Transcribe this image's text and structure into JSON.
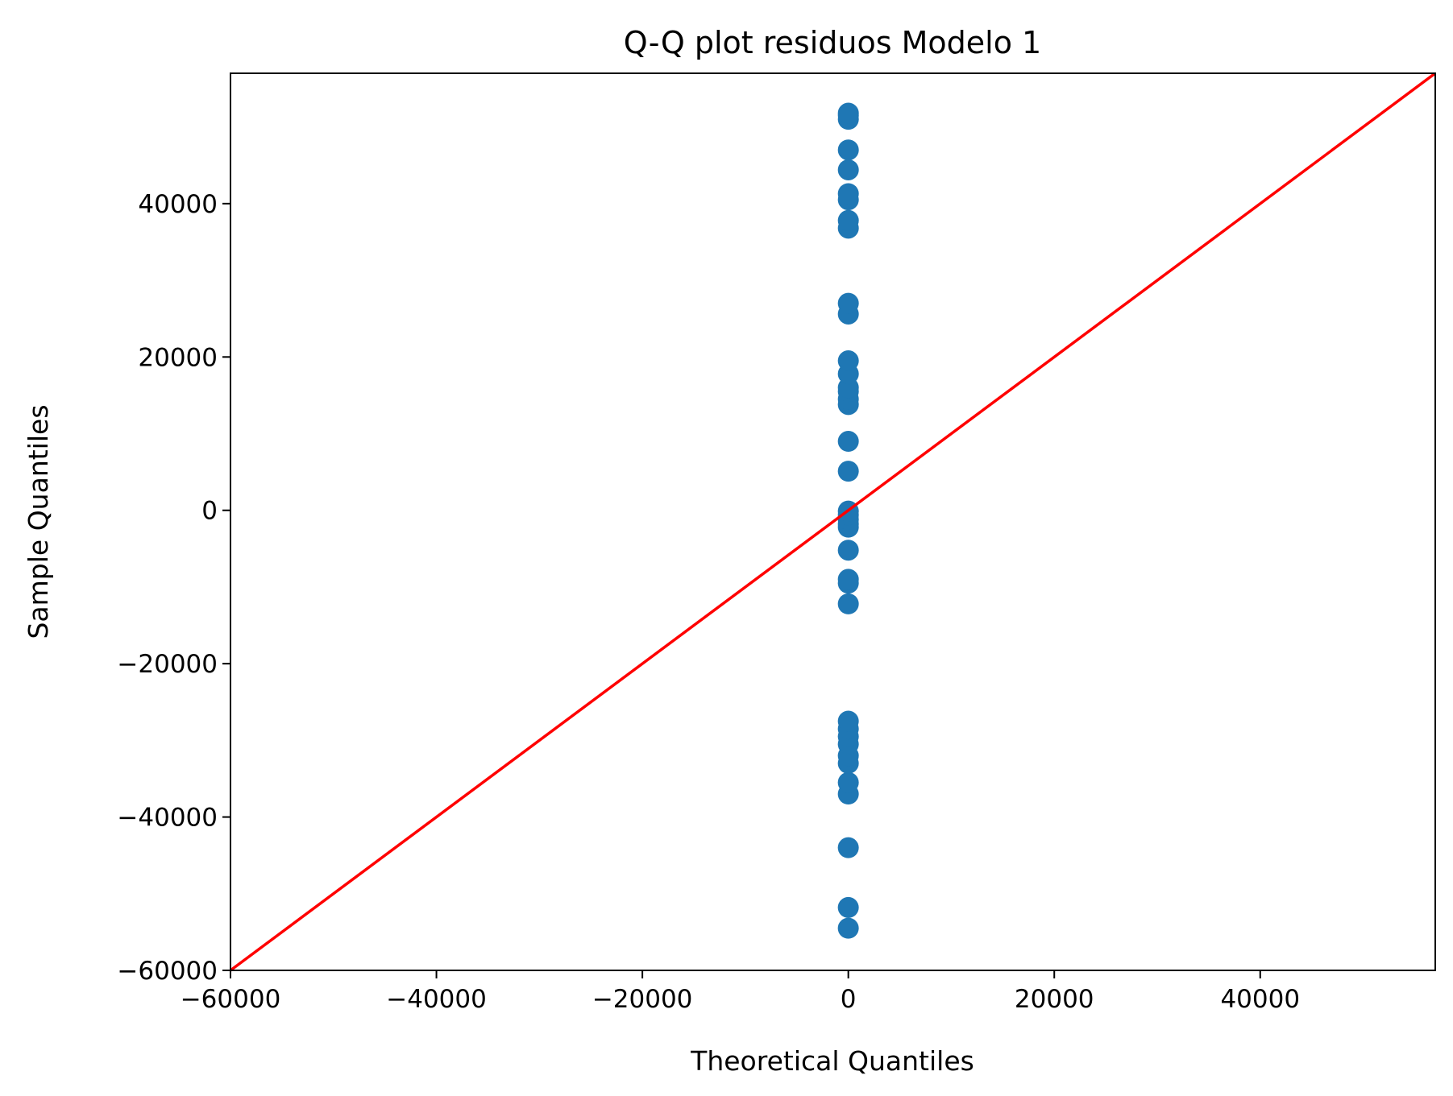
{
  "chart_data": {
    "type": "scatter",
    "title": "Q-Q plot residuos Modelo 1",
    "xlabel": "Theoretical Quantiles",
    "ylabel": "Sample Quantiles",
    "xlim": [
      -60000,
      57000
    ],
    "ylim": [
      -60000,
      57000
    ],
    "x_ticks": [
      -60000,
      -40000,
      -20000,
      0,
      20000,
      40000
    ],
    "x_tick_labels": [
      "−60000",
      "−40000",
      "−20000",
      "0",
      "20000",
      "40000"
    ],
    "y_ticks": [
      -60000,
      -40000,
      -20000,
      0,
      20000,
      40000
    ],
    "y_tick_labels": [
      "−60000",
      "−40000",
      "−20000",
      "0",
      "20000",
      "40000"
    ],
    "grid": false,
    "colors": {
      "points": "#1f77b4",
      "reference_line": "#ff0000"
    },
    "series": [
      {
        "x": [
          -2.2,
          -1.8,
          -1.6,
          -1.4,
          -1.3,
          -1.2,
          -1.1,
          -1.0,
          -0.95,
          -0.85,
          -0.75,
          -0.65,
          -0.6,
          -0.5,
          -0.45,
          -0.35,
          -0.25,
          -0.2,
          -0.15,
          -0.05,
          0.05,
          0.15,
          0.25,
          0.35,
          0.45,
          0.55,
          0.65,
          0.75,
          0.85,
          0.95,
          1.05,
          1.15,
          1.25,
          1.35,
          1.45,
          1.6,
          1.8,
          2.0,
          2.2
        ],
        "y": [
          -54500,
          -51800,
          -44000,
          -37000,
          -35500,
          -33000,
          -32000,
          -30500,
          -29500,
          -28500,
          -27500,
          -12200,
          -9500,
          -9000,
          -5200,
          -2200,
          -1800,
          -1200,
          -600,
          -100,
          5100,
          9000,
          13800,
          14500,
          15500,
          16000,
          17800,
          19500,
          25600,
          27000,
          36800,
          37800,
          40500,
          41300,
          44400,
          47000,
          51000,
          51500,
          51800
        ]
      }
    ],
    "reference_line": {
      "x": [
        -60000,
        57000
      ],
      "y": [
        -60000,
        57000
      ]
    }
  }
}
